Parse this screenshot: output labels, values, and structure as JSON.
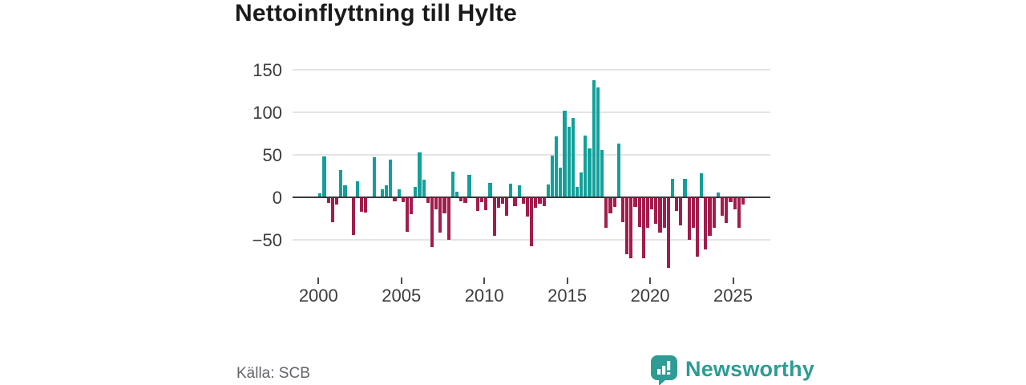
{
  "header": {
    "title": "Nettoinflyttning till Hylte"
  },
  "footer": {
    "source": "Källa: SCB",
    "brand": "Newsworthy"
  },
  "colors": {
    "positive": "#13a09a",
    "negative": "#a21c4d",
    "brand_teal": "#2e9c94",
    "grid": "#e4e4e4",
    "zero_line": "#3a3a3a",
    "axis_text": "#3c3c3c",
    "title_text": "#1a1a1a",
    "source_text": "#64646b"
  },
  "chart_data": {
    "type": "bar",
    "title": "Nettoinflyttning till Hylte",
    "frequency": "quarterly",
    "start_year": 2000,
    "start_quarter": 1,
    "xticks": [
      2000,
      2005,
      2010,
      2015,
      2020,
      2025
    ],
    "yticks": [
      150,
      100,
      50,
      0,
      -50
    ],
    "ylim": [
      -98,
      157
    ],
    "grid": true,
    "legend": false,
    "positive_color": "#13a09a",
    "negative_color": "#a21c4d",
    "values": [
      5,
      48,
      -6,
      -28,
      -8,
      32,
      14,
      0,
      -43,
      19,
      -16,
      -17,
      0,
      47,
      0,
      9,
      14,
      44,
      -4,
      9,
      -5,
      -40,
      -19,
      12,
      53,
      21,
      -6,
      -58,
      -13,
      -41,
      -18,
      -49,
      30,
      7,
      -4,
      -6,
      26,
      0,
      -15,
      -5,
      -14,
      17,
      -44,
      -11,
      -7,
      -21,
      16,
      -9,
      14,
      -7,
      -22,
      -57,
      -11,
      -7,
      -9,
      15,
      49,
      72,
      35,
      102,
      83,
      93,
      12,
      29,
      73,
      58,
      138,
      129,
      56,
      -35,
      -18,
      -10,
      63,
      -28,
      -66,
      -71,
      -10,
      -34,
      -71,
      -35,
      -13,
      -30,
      -41,
      -35,
      -82,
      22,
      -15,
      -32,
      22,
      -49,
      -35,
      -69,
      28,
      -60,
      -44,
      -35,
      6,
      -21,
      -29,
      -5,
      -13,
      -35,
      -8
    ]
  }
}
